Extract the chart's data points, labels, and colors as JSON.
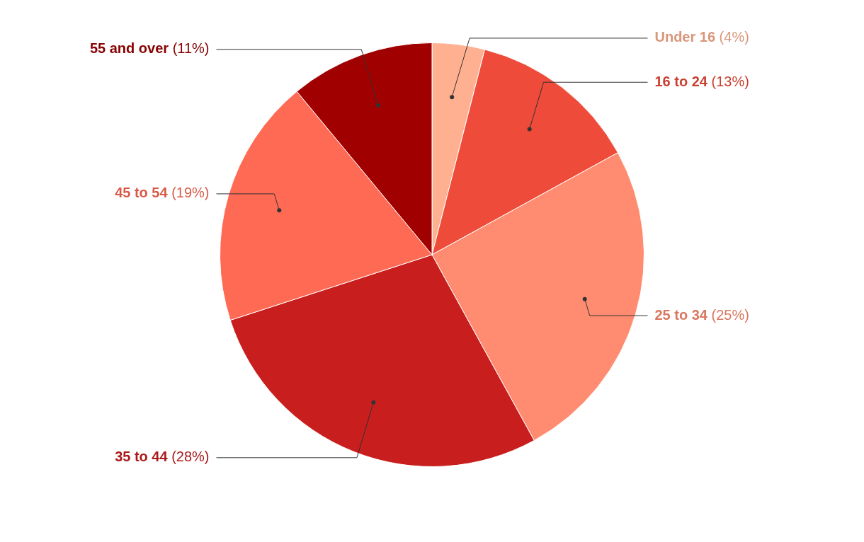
{
  "chart_data": {
    "type": "pie",
    "categories": [
      "Under 16",
      "16 to 24",
      "25 to 34",
      "35 to 44",
      "45 to 54",
      "55 and over"
    ],
    "values": [
      4,
      13,
      25,
      28,
      19,
      11
    ],
    "value_labels": [
      "(4%)",
      "(13%)",
      "(25%)",
      "(28%)",
      "(19%)",
      "(11%)"
    ],
    "colors": [
      "#ffb090",
      "#ee4b3a",
      "#ff8c70",
      "#c81e1e",
      "#ff6a55",
      "#a00000"
    ],
    "legend": false
  }
}
